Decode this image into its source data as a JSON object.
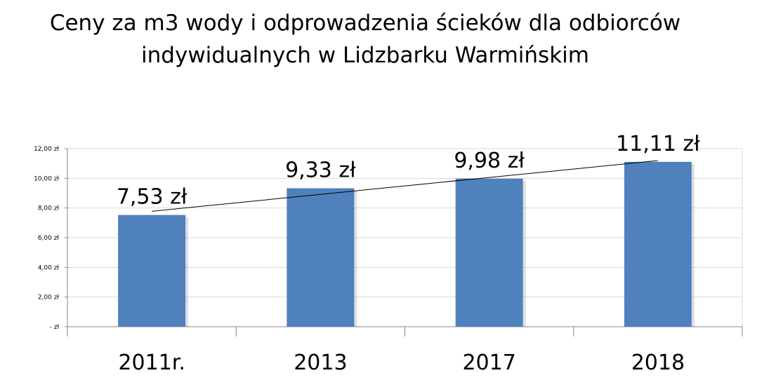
{
  "title_line1": "Ceny za m3 wody i odprowadzenia ścieków dla odbiorców",
  "title_line2": "indywidualnych w Lidzbarku Warmińskim",
  "chart_data": {
    "type": "bar",
    "title": "Ceny za m3 wody i odprowadzenia ścieków dla odbiorców indywidualnych w Lidzbarku Warmińskim",
    "categories": [
      "2011r.",
      "2013",
      "2017",
      "2018"
    ],
    "values": [
      7.53,
      9.33,
      9.98,
      11.11
    ],
    "data_labels": [
      "7,53 zł",
      "9,33 zł",
      "9,98 zł",
      "11,11 zł"
    ],
    "ylim": [
      0,
      12
    ],
    "y_ticks": [
      0,
      2,
      4,
      6,
      8,
      10,
      12
    ],
    "y_tick_labels": [
      "-   zł",
      "2,00 zł",
      "4,00 zł",
      "6,00 zł",
      "8,00 zł",
      "10,00 zł",
      "12,00 zł"
    ],
    "trendline": "linear",
    "grid": true,
    "legend": "none",
    "colors": {
      "bar": "#4F81BD",
      "grid": "#D9D9D9",
      "axis": "#868686",
      "trend": "#000000"
    }
  }
}
